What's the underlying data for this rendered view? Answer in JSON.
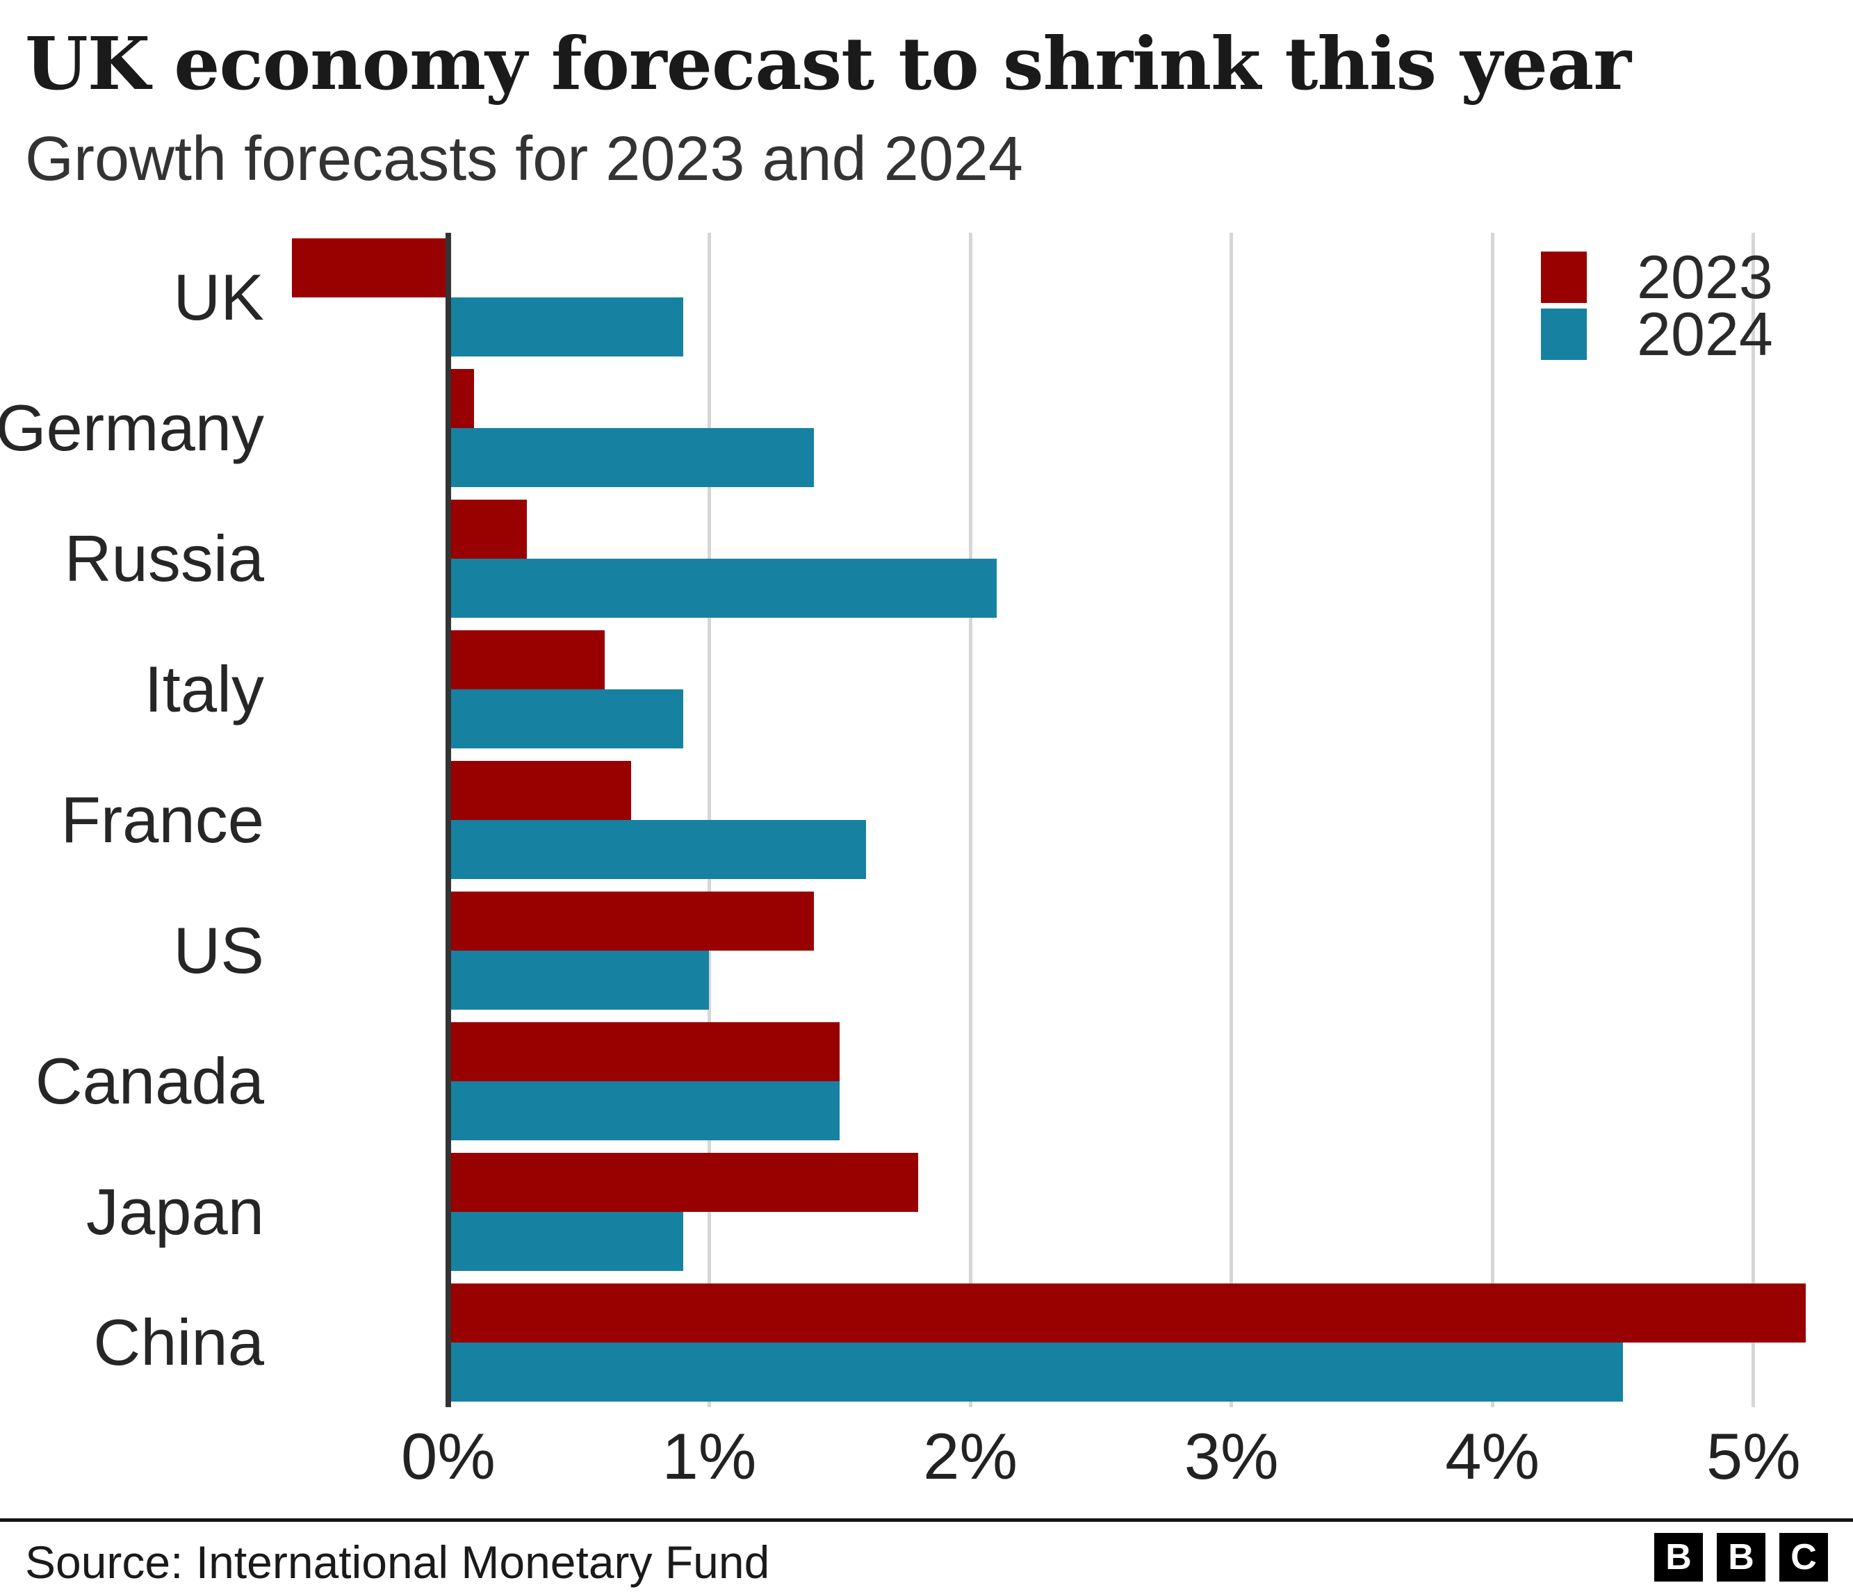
{
  "chart_data": {
    "type": "bar",
    "orientation": "horizontal",
    "title": "UK economy forecast to shrink this year",
    "subtitle": "Growth forecasts for 2023 and 2024",
    "categories": [
      "UK",
      "Germany",
      "Russia",
      "Italy",
      "France",
      "US",
      "Canada",
      "Japan",
      "China"
    ],
    "series": [
      {
        "name": "2023",
        "color": "#990000",
        "values": [
          -0.6,
          0.1,
          0.3,
          0.6,
          0.7,
          1.4,
          1.5,
          1.8,
          5.2
        ]
      },
      {
        "name": "2024",
        "color": "#1781a1",
        "values": [
          0.9,
          1.4,
          2.1,
          0.9,
          1.6,
          1.0,
          1.5,
          0.9,
          4.5
        ]
      }
    ],
    "unit": "%",
    "x_ticks": [
      {
        "label": "0%",
        "value": 0
      },
      {
        "label": "1%",
        "value": 1
      },
      {
        "label": "2%",
        "value": 2
      },
      {
        "label": "3%",
        "value": 3
      },
      {
        "label": "4%",
        "value": 4
      },
      {
        "label": "5%",
        "value": 5
      }
    ],
    "xlim": [
      -0.652,
      5.312
    ],
    "grid": true,
    "legend_position": "top-right",
    "colors": {
      "axis": "#333333",
      "gridline": "#d6d6d6",
      "text": "#222222"
    }
  },
  "footer": {
    "source": "Source: International Monetary Fund",
    "logo_letters": [
      "B",
      "B",
      "C"
    ]
  }
}
